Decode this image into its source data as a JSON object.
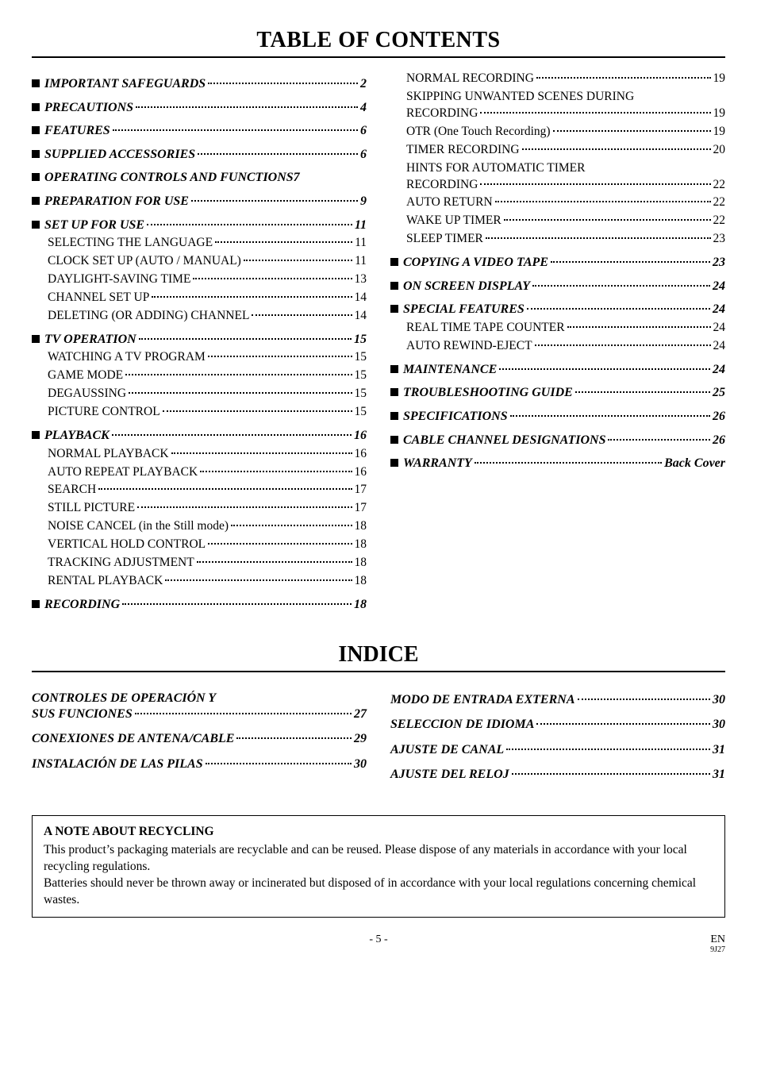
{
  "titles": {
    "toc": "TABLE OF CONTENTS",
    "indice": "INDICE"
  },
  "toc": {
    "left": [
      {
        "type": "top",
        "label": "IMPORTANT SAFEGUARDS",
        "page": "2"
      },
      {
        "type": "top",
        "label": "PRECAUTIONS",
        "page": "4"
      },
      {
        "type": "top",
        "label": "FEATURES",
        "page": "6"
      },
      {
        "type": "top",
        "label": "SUPPLIED ACCESSORIES",
        "page": "6"
      },
      {
        "type": "top",
        "label": "OPERATING CONTROLS AND FUNCTIONS",
        "page": "7",
        "nodots": true
      },
      {
        "type": "top",
        "label": "PREPARATION FOR USE",
        "page": "9"
      },
      {
        "type": "top",
        "label": "SET UP FOR USE",
        "page": "11"
      },
      {
        "type": "sub",
        "label": "SELECTING THE LANGUAGE",
        "page": "11"
      },
      {
        "type": "sub",
        "label": "CLOCK SET UP (AUTO / MANUAL)",
        "page": "11"
      },
      {
        "type": "sub",
        "label": "DAYLIGHT-SAVING TIME",
        "page": "13"
      },
      {
        "type": "sub",
        "label": "CHANNEL SET UP",
        "page": "14"
      },
      {
        "type": "sub",
        "label": "DELETING (OR ADDING) CHANNEL",
        "page": "14"
      },
      {
        "type": "top",
        "label": "TV OPERATION",
        "page": "15"
      },
      {
        "type": "sub",
        "label": "WATCHING A TV PROGRAM",
        "page": "15"
      },
      {
        "type": "sub",
        "label": "GAME MODE",
        "page": "15"
      },
      {
        "type": "sub",
        "label": "DEGAUSSING",
        "page": "15"
      },
      {
        "type": "sub",
        "label": "PICTURE CONTROL",
        "page": "15"
      },
      {
        "type": "top",
        "label": "PLAYBACK",
        "page": "16"
      },
      {
        "type": "sub",
        "label": "NORMAL PLAYBACK",
        "page": "16"
      },
      {
        "type": "sub",
        "label": "AUTO REPEAT PLAYBACK",
        "page": "16"
      },
      {
        "type": "sub",
        "label": "SEARCH",
        "page": "17"
      },
      {
        "type": "sub",
        "label": "STILL PICTURE",
        "page": "17"
      },
      {
        "type": "sub",
        "label": "NOISE CANCEL (in the Still mode)",
        "page": "18"
      },
      {
        "type": "sub",
        "label": "VERTICAL HOLD CONTROL",
        "page": "18"
      },
      {
        "type": "sub",
        "label": "TRACKING ADJUSTMENT",
        "page": "18"
      },
      {
        "type": "sub",
        "label": "RENTAL PLAYBACK",
        "page": "18"
      },
      {
        "type": "top",
        "label": "RECORDING",
        "page": "18"
      }
    ],
    "right": [
      {
        "type": "sub",
        "label": "NORMAL RECORDING",
        "page": "19"
      },
      {
        "type": "wrap",
        "line1": "SKIPPING UNWANTED SCENES DURING",
        "line2": "RECORDING",
        "page": "19"
      },
      {
        "type": "sub",
        "label": "OTR (One Touch Recording)",
        "page": "19"
      },
      {
        "type": "sub",
        "label": "TIMER RECORDING",
        "page": "20"
      },
      {
        "type": "wrap",
        "line1": "HINTS FOR AUTOMATIC TIMER",
        "line2": "RECORDING",
        "page": "22"
      },
      {
        "type": "sub",
        "label": "AUTO RETURN",
        "page": "22"
      },
      {
        "type": "sub",
        "label": "WAKE UP TIMER",
        "page": "22"
      },
      {
        "type": "sub",
        "label": "SLEEP TIMER",
        "page": "23"
      },
      {
        "type": "top",
        "label": "COPYING A VIDEO TAPE",
        "page": "23"
      },
      {
        "type": "top",
        "label": "ON SCREEN DISPLAY",
        "page": "24"
      },
      {
        "type": "top",
        "label": "SPECIAL FEATURES",
        "page": "24"
      },
      {
        "type": "sub",
        "label": "REAL TIME TAPE COUNTER",
        "page": "24"
      },
      {
        "type": "sub",
        "label": "AUTO REWIND-EJECT",
        "page": "24"
      },
      {
        "type": "top",
        "label": "MAINTENANCE",
        "page": "24"
      },
      {
        "type": "top",
        "label": "TROUBLESHOOTING GUIDE",
        "page": "25"
      },
      {
        "type": "top",
        "label": "SPECIFICATIONS",
        "page": "26"
      },
      {
        "type": "top",
        "label": "CABLE CHANNEL DESIGNATIONS",
        "page": "26"
      },
      {
        "type": "top",
        "label": "WARRANTY",
        "page": "Back Cover"
      }
    ]
  },
  "indice": {
    "left": [
      {
        "type": "indwrap",
        "line1": "CONTROLES DE OPERACIÓN Y",
        "line2": "SUS FUNCIONES",
        "page": "27"
      },
      {
        "type": "indtop",
        "label": "CONEXIONES DE ANTENA/CABLE",
        "page": "29"
      },
      {
        "type": "indtop",
        "label": "INSTALACIÓN DE LAS PILAS",
        "page": "30"
      }
    ],
    "right": [
      {
        "type": "indtop",
        "label": "MODO DE ENTRADA EXTERNA",
        "page": "30"
      },
      {
        "type": "indtop",
        "label": "SELECCION DE IDIOMA",
        "page": "30"
      },
      {
        "type": "indtop",
        "label": "AJUSTE DE CANAL",
        "page": "31"
      },
      {
        "type": "indtop",
        "label": "AJUSTE DEL RELOJ",
        "page": "31"
      }
    ]
  },
  "note": {
    "title": "A NOTE ABOUT RECYCLING",
    "p1": "This product’s packaging materials are recyclable and can be reused. Please dispose of any materials in accordance with your local recycling regulations.",
    "p2": "Batteries should never be thrown away or incinerated but disposed of in accordance with your local regulations concerning chemical wastes."
  },
  "footer": {
    "page": "- 5 -",
    "en": "EN",
    "code": "9J27"
  }
}
